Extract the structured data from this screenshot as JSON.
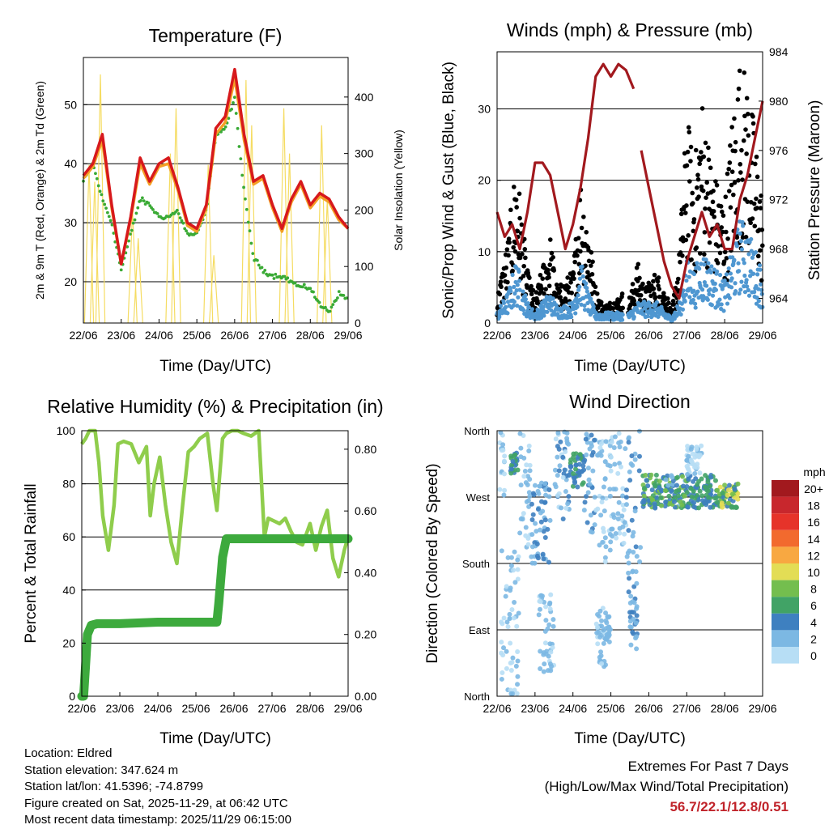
{
  "colors": {
    "temp_red": "#d7191c",
    "temp_orange": "#f4a027",
    "dew_green": "#3aaa35",
    "solar_yellow": "#f5dc62",
    "wind_black": "#000000",
    "gust_blue": "#4f97d1",
    "pressure_maroon": "#a2191e",
    "rh_green": "#8fcd4c",
    "precip_green": "#3daa3d",
    "extremes_red": "#c0232a"
  },
  "x_tick_labels": [
    "22/06",
    "23/06",
    "24/06",
    "25/06",
    "26/06",
    "27/06",
    "28/06",
    "29/06"
  ],
  "x_axis_label": "Time (Day/UTC)",
  "chart_data": [
    {
      "type": "line",
      "title": "Temperature (F)",
      "ylabel": "2m & 9m T (Red, Orange) & 2m Td (Green)",
      "ylabel_right": "Solar Insolation (Yellow)",
      "xlabel": "Time (Day/UTC)",
      "x": [
        0,
        0.25,
        0.5,
        0.75,
        1.0,
        1.25,
        1.5,
        1.75,
        2.0,
        2.25,
        2.5,
        2.75,
        3.0,
        3.25,
        3.5,
        3.75,
        4.0,
        4.25,
        4.5,
        4.75,
        5.0,
        5.25,
        5.5,
        5.75,
        6.0,
        6.25,
        6.5,
        6.75,
        7.0
      ],
      "xlim": [
        0,
        7
      ],
      "ylim": [
        13,
        58
      ],
      "yticks": [
        20,
        30,
        40,
        50
      ],
      "ylim_right": [
        0,
        470
      ],
      "yticks_right": [
        0,
        100,
        200,
        300,
        400
      ],
      "series": [
        {
          "name": "2m T",
          "color": "#d7191c",
          "values": [
            38,
            40,
            45,
            33,
            23,
            31,
            41,
            37,
            40,
            41,
            36,
            30,
            29,
            33,
            46,
            48,
            56,
            45,
            37,
            38,
            33,
            29,
            34,
            37,
            33,
            35,
            34,
            31,
            29
          ]
        },
        {
          "name": "9m T",
          "color": "#f4a027",
          "values": [
            37.5,
            39.5,
            44,
            32.5,
            23,
            30.5,
            40,
            36.5,
            39.5,
            40,
            35.5,
            29.5,
            28.5,
            32.5,
            45,
            47,
            54.5,
            44,
            36.5,
            37.5,
            32.5,
            28.5,
            33.5,
            36.5,
            32.5,
            34.5,
            33.5,
            30.5,
            29
          ]
        },
        {
          "name": "2m Td",
          "color": "#3aaa35",
          "values": [
            37,
            40,
            34,
            30,
            22,
            28,
            34,
            33,
            31,
            31,
            32,
            28,
            28,
            32,
            45,
            46,
            51,
            35,
            24,
            22,
            21,
            21,
            20,
            19,
            19,
            16,
            15,
            18,
            17
          ]
        }
      ],
      "solar_series": {
        "name": "Solar Insolation",
        "color": "#f5dc62",
        "x": [
          0.15,
          0.3,
          0.45,
          1.3,
          1.45,
          2.3,
          2.45,
          3.3,
          3.45,
          4.3,
          4.45,
          5.3,
          5.45,
          6.3,
          6.45
        ],
        "values": [
          280,
          250,
          440,
          200,
          150,
          300,
          380,
          280,
          120,
          430,
          350,
          380,
          300,
          350,
          220
        ]
      }
    },
    {
      "type": "scatter",
      "title": "Winds (mph) & Pressure (mb)",
      "ylabel": "Sonic/Prop Wind & Gust (Blue, Black)",
      "ylabel_right": "Station Pressure (Maroon)",
      "xlabel": "Time (Day/UTC)",
      "xlim": [
        0,
        7
      ],
      "ylim": [
        0,
        38
      ],
      "yticks": [
        0,
        10,
        20,
        30
      ],
      "ylim_right": [
        962,
        984
      ],
      "yticks_right": [
        964,
        968,
        972,
        976,
        980,
        984
      ],
      "pressure_x": [
        0,
        0.2,
        0.4,
        0.6,
        0.8,
        1.0,
        1.2,
        1.4,
        1.6,
        1.8,
        2.0,
        2.2,
        2.4,
        2.6,
        2.8,
        3.0,
        3.2,
        3.4,
        3.6,
        null,
        3.8,
        4.0,
        4.2,
        4.4,
        4.6,
        4.8,
        5.0,
        5.2,
        5.4,
        5.6,
        5.8,
        6.0,
        6.2,
        6.4,
        6.6,
        6.8,
        7.0
      ],
      "pressure": [
        971,
        969,
        970,
        968,
        971,
        975,
        975,
        974,
        971,
        968,
        970,
        973,
        977,
        982,
        983,
        982,
        983,
        982.5,
        981,
        null,
        976,
        973,
        970,
        967,
        965,
        964,
        967,
        969,
        971,
        969,
        970,
        968,
        968,
        972,
        974,
        977,
        980
      ],
      "series": [
        {
          "name": "Gust",
          "color": "#000000",
          "summary": "peaks near 33 mph on 28/06"
        },
        {
          "name": "Wind",
          "color": "#4f97d1",
          "summary": "mostly 0-10 mph, up to 12.8 mph"
        }
      ]
    },
    {
      "type": "line",
      "title": "Relative Humidity (%) & Precipitation (in)",
      "ylabel": "Percent & Total Rainfall",
      "xlabel": "Time (Day/UTC)",
      "xlim": [
        0,
        7
      ],
      "ylim": [
        0,
        100
      ],
      "yticks": [
        0,
        20,
        40,
        60,
        80,
        100
      ],
      "ylim_right": [
        0,
        0.86
      ],
      "yticks_right": [
        0.0,
        0.2,
        0.4,
        0.6,
        0.8
      ],
      "series": [
        {
          "name": "Relative Humidity",
          "color": "#8fcd4c",
          "x": [
            0,
            0.1,
            0.2,
            0.35,
            0.45,
            0.55,
            0.7,
            0.85,
            0.95,
            1.1,
            1.3,
            1.5,
            1.7,
            1.8,
            1.9,
            2.05,
            2.2,
            2.35,
            2.5,
            2.65,
            2.8,
            2.95,
            3.1,
            3.3,
            3.45,
            3.55,
            3.7,
            3.8,
            3.95,
            4.1,
            4.25,
            4.45,
            4.65,
            4.8,
            4.9,
            5.05,
            5.2,
            5.35,
            5.5,
            5.65,
            5.8,
            6.0,
            6.15,
            6.3,
            6.45,
            6.6,
            6.75,
            6.9,
            7.0
          ],
          "values": [
            95,
            97,
            100,
            100,
            88,
            68,
            55,
            72,
            95,
            96,
            95,
            88,
            94,
            68,
            80,
            90,
            72,
            58,
            50,
            72,
            92,
            94,
            97,
            99,
            80,
            70,
            97,
            99,
            100,
            100,
            99,
            98,
            100,
            60,
            67,
            66,
            65,
            67,
            62,
            58,
            57,
            65,
            55,
            64,
            70,
            52,
            45,
            55,
            60
          ]
        },
        {
          "name": "Total Rainfall",
          "color": "#3daa3d",
          "axis": "right",
          "x": [
            0,
            0.05,
            0.1,
            0.15,
            0.25,
            0.4,
            1.0,
            2.0,
            3.0,
            3.5,
            3.55,
            3.6,
            3.7,
            3.8,
            3.9,
            4.0,
            5.0,
            6.0,
            7.0
          ],
          "values": [
            0.0,
            0.0,
            0.1,
            0.2,
            0.23,
            0.235,
            0.235,
            0.24,
            0.24,
            0.24,
            0.24,
            0.3,
            0.45,
            0.51,
            0.51,
            0.51,
            0.51,
            0.51,
            0.51
          ]
        }
      ]
    },
    {
      "type": "scatter",
      "title": "Wind Direction",
      "ylabel": "Direction (Colored By Speed)",
      "xlabel": "Time (Day/UTC)",
      "xlim": [
        0,
        7
      ],
      "y_categories": [
        "North",
        "East",
        "South",
        "West",
        "North"
      ],
      "ylim": [
        0,
        360
      ],
      "legend_unit": "mph",
      "legend_labels": [
        "20+",
        "18",
        "16",
        "14",
        "12",
        "10",
        "8",
        "6",
        "4",
        "2",
        "0"
      ],
      "legend_colors": [
        "#a2191e",
        "#c8272d",
        "#e6332a",
        "#f26a2e",
        "#f8a841",
        "#e3dd55",
        "#74be4e",
        "#41a366",
        "#3e80c0",
        "#7cb8e3",
        "#b7def5"
      ]
    }
  ],
  "footer": {
    "location": "Location: Eldred",
    "elevation": "Station elevation: 347.624 m",
    "latlon": "Station lat/lon: 41.5396; -74.8799",
    "created": "Figure created on Sat, 2025-11-29, at 06:42 UTC",
    "latest": "Most recent data timestamp: 2025/11/29 06:15:00"
  },
  "extremes": {
    "title": "Extremes For Past 7 Days",
    "subtitle": "(High/Low/Max Wind/Total Precipitation)",
    "values": "56.7/22.1/12.8/0.51"
  }
}
